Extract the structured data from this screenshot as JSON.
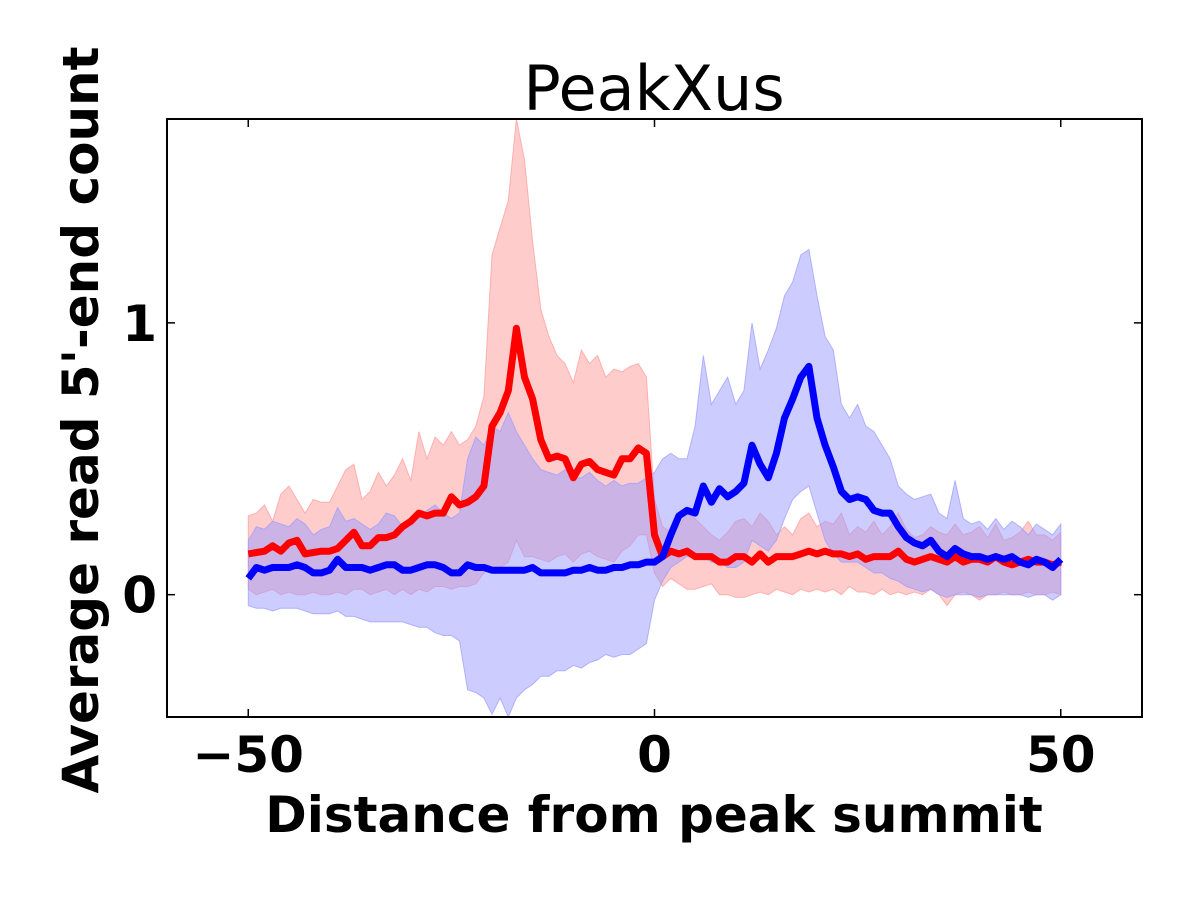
{
  "chart_data": {
    "type": "line",
    "title": "PeakXus",
    "xlabel": "Distance from peak summit",
    "ylabel": "Average read 5'-end count",
    "xlim": [
      -60,
      60
    ],
    "ylim": [
      -0.45,
      1.75
    ],
    "xticks": [
      -50,
      0,
      50
    ],
    "xtick_labels": [
      "−50",
      "0",
      "50"
    ],
    "yticks": [
      0,
      1
    ],
    "ytick_labels": [
      "0",
      "1"
    ],
    "grid": false,
    "legend": "none",
    "x": [
      -50,
      -49,
      -48,
      -47,
      -46,
      -45,
      -44,
      -43,
      -42,
      -41,
      -40,
      -39,
      -38,
      -37,
      -36,
      -35,
      -34,
      -33,
      -32,
      -31,
      -30,
      -29,
      -28,
      -27,
      -26,
      -25,
      -24,
      -23,
      -22,
      -21,
      -20,
      -19,
      -18,
      -17,
      -16,
      -15,
      -14,
      -13,
      -12,
      -11,
      -10,
      -9,
      -8,
      -7,
      -6,
      -5,
      -4,
      -3,
      -2,
      -1,
      0,
      1,
      2,
      3,
      4,
      5,
      6,
      7,
      8,
      9,
      10,
      11,
      12,
      13,
      14,
      15,
      16,
      17,
      18,
      19,
      20,
      21,
      22,
      23,
      24,
      25,
      26,
      27,
      28,
      29,
      30,
      31,
      32,
      33,
      34,
      35,
      36,
      37,
      38,
      39,
      40,
      41,
      42,
      43,
      44,
      45,
      46,
      47,
      48,
      49,
      50
    ],
    "series": [
      {
        "color": "#ff0000",
        "band_color": "#ff9a9a",
        "values": [
          0.15,
          0.155,
          0.16,
          0.18,
          0.16,
          0.19,
          0.2,
          0.15,
          0.155,
          0.16,
          0.16,
          0.17,
          0.2,
          0.23,
          0.18,
          0.18,
          0.21,
          0.21,
          0.22,
          0.25,
          0.27,
          0.3,
          0.29,
          0.3,
          0.3,
          0.36,
          0.33,
          0.34,
          0.36,
          0.4,
          0.62,
          0.67,
          0.75,
          0.98,
          0.8,
          0.72,
          0.57,
          0.5,
          0.51,
          0.5,
          0.43,
          0.48,
          0.49,
          0.46,
          0.45,
          0.44,
          0.5,
          0.5,
          0.54,
          0.52,
          0.22,
          0.14,
          0.16,
          0.15,
          0.16,
          0.14,
          0.14,
          0.14,
          0.12,
          0.12,
          0.14,
          0.14,
          0.12,
          0.15,
          0.12,
          0.14,
          0.14,
          0.14,
          0.15,
          0.16,
          0.15,
          0.16,
          0.15,
          0.15,
          0.14,
          0.15,
          0.13,
          0.14,
          0.14,
          0.14,
          0.16,
          0.13,
          0.12,
          0.13,
          0.14,
          0.13,
          0.12,
          0.14,
          0.12,
          0.13,
          0.13,
          0.12,
          0.14,
          0.12,
          0.11,
          0.12,
          0.13,
          0.12,
          0.12,
          0.11,
          0.12
        ],
        "upper": [
          0.29,
          0.3,
          0.33,
          0.27,
          0.37,
          0.4,
          0.35,
          0.3,
          0.35,
          0.34,
          0.34,
          0.4,
          0.46,
          0.48,
          0.35,
          0.38,
          0.45,
          0.4,
          0.44,
          0.5,
          0.42,
          0.6,
          0.5,
          0.58,
          0.55,
          0.6,
          0.55,
          0.57,
          0.62,
          0.73,
          1.25,
          1.35,
          1.45,
          1.75,
          1.6,
          1.3,
          1.05,
          0.95,
          0.88,
          0.85,
          0.78,
          0.9,
          0.85,
          0.88,
          0.8,
          0.83,
          0.82,
          0.84,
          0.85,
          0.8,
          0.35,
          0.25,
          0.23,
          0.25,
          0.3,
          0.28,
          0.25,
          0.22,
          0.2,
          0.23,
          0.27,
          0.28,
          0.25,
          0.3,
          0.27,
          0.22,
          0.25,
          0.22,
          0.28,
          0.3,
          0.25,
          0.27,
          0.26,
          0.3,
          0.22,
          0.25,
          0.23,
          0.27,
          0.22,
          0.25,
          0.3,
          0.24,
          0.21,
          0.22,
          0.25,
          0.23,
          0.22,
          0.26,
          0.22,
          0.23,
          0.25,
          0.21,
          0.26,
          0.2,
          0.21,
          0.23,
          0.27,
          0.22,
          0.22,
          0.2,
          0.23
        ],
        "lower": [
          0.02,
          0.0,
          0.01,
          0.02,
          0.0,
          0.01,
          0.0,
          0.0,
          0.01,
          0.0,
          0.0,
          0.01,
          0.0,
          0.02,
          0.02,
          0.0,
          0.01,
          0.02,
          0.0,
          0.02,
          0.0,
          0.02,
          0.01,
          0.03,
          0.03,
          0.02,
          0.03,
          0.03,
          0.04,
          0.08,
          0.1,
          0.1,
          0.12,
          0.2,
          0.14,
          0.14,
          0.13,
          0.12,
          0.14,
          0.15,
          0.12,
          0.15,
          0.16,
          0.14,
          0.13,
          0.12,
          0.16,
          0.18,
          0.22,
          0.22,
          0.08,
          0.03,
          0.06,
          0.04,
          0.02,
          0.02,
          0.03,
          0.04,
          0.0,
          0.0,
          -0.01,
          -0.01,
          0.0,
          0.01,
          0.0,
          0.02,
          0.01,
          0.0,
          0.02,
          0.01,
          0.02,
          0.01,
          0.02,
          0.0,
          0.03,
          0.01,
          0.01,
          0.0,
          0.02,
          0.0,
          0.01,
          0.0,
          0.01,
          0.0,
          0.02,
          0.0,
          -0.04,
          0.0,
          0.01,
          0.0,
          -0.02,
          0.0,
          0.0,
          0.01,
          0.0,
          0.0,
          0.01,
          0.0,
          0.0,
          0.01,
          0.0
        ]
      },
      {
        "color": "#0000ff",
        "band_color": "#9a9aff",
        "values": [
          0.06,
          0.1,
          0.09,
          0.1,
          0.1,
          0.1,
          0.11,
          0.1,
          0.08,
          0.08,
          0.09,
          0.13,
          0.1,
          0.1,
          0.1,
          0.09,
          0.1,
          0.11,
          0.11,
          0.09,
          0.09,
          0.1,
          0.11,
          0.11,
          0.1,
          0.08,
          0.08,
          0.11,
          0.1,
          0.1,
          0.09,
          0.09,
          0.09,
          0.09,
          0.09,
          0.1,
          0.08,
          0.08,
          0.08,
          0.08,
          0.09,
          0.09,
          0.1,
          0.09,
          0.09,
          0.1,
          0.1,
          0.11,
          0.11,
          0.12,
          0.12,
          0.14,
          0.22,
          0.29,
          0.31,
          0.3,
          0.4,
          0.34,
          0.39,
          0.36,
          0.38,
          0.41,
          0.55,
          0.48,
          0.43,
          0.52,
          0.65,
          0.72,
          0.8,
          0.84,
          0.65,
          0.55,
          0.47,
          0.38,
          0.35,
          0.36,
          0.35,
          0.31,
          0.3,
          0.3,
          0.25,
          0.21,
          0.19,
          0.18,
          0.2,
          0.16,
          0.14,
          0.17,
          0.15,
          0.14,
          0.14,
          0.13,
          0.14,
          0.13,
          0.14,
          0.12,
          0.11,
          0.13,
          0.12,
          0.1,
          0.13
        ],
        "upper": [
          0.2,
          0.25,
          0.24,
          0.27,
          0.26,
          0.25,
          0.28,
          0.26,
          0.22,
          0.24,
          0.25,
          0.32,
          0.27,
          0.28,
          0.26,
          0.24,
          0.26,
          0.3,
          0.29,
          0.25,
          0.26,
          0.29,
          0.31,
          0.33,
          0.3,
          0.28,
          0.3,
          0.5,
          0.58,
          0.55,
          0.62,
          0.6,
          0.67,
          0.6,
          0.55,
          0.5,
          0.46,
          0.45,
          0.44,
          0.46,
          0.43,
          0.43,
          0.45,
          0.42,
          0.4,
          0.42,
          0.4,
          0.41,
          0.41,
          0.43,
          0.45,
          0.5,
          0.52,
          0.5,
          0.5,
          0.62,
          0.88,
          0.7,
          0.75,
          0.8,
          0.7,
          0.75,
          1.0,
          0.83,
          0.9,
          0.98,
          1.1,
          1.15,
          1.25,
          1.27,
          1.1,
          0.95,
          0.9,
          0.7,
          0.65,
          0.7,
          0.62,
          0.6,
          0.55,
          0.5,
          0.4,
          0.37,
          0.35,
          0.36,
          0.37,
          0.3,
          0.28,
          0.42,
          0.28,
          0.26,
          0.27,
          0.24,
          0.28,
          0.24,
          0.27,
          0.25,
          0.22,
          0.26,
          0.24,
          0.22,
          0.26
        ],
        "lower": [
          -0.04,
          -0.05,
          -0.05,
          -0.06,
          -0.05,
          -0.05,
          -0.05,
          -0.06,
          -0.07,
          -0.07,
          -0.07,
          -0.06,
          -0.08,
          -0.08,
          -0.09,
          -0.1,
          -0.1,
          -0.1,
          -0.1,
          -0.1,
          -0.11,
          -0.12,
          -0.12,
          -0.14,
          -0.15,
          -0.15,
          -0.17,
          -0.35,
          -0.36,
          -0.38,
          -0.44,
          -0.38,
          -0.45,
          -0.38,
          -0.35,
          -0.33,
          -0.3,
          -0.3,
          -0.28,
          -0.28,
          -0.26,
          -0.27,
          -0.25,
          -0.24,
          -0.22,
          -0.23,
          -0.22,
          -0.22,
          -0.2,
          -0.18,
          -0.02,
          0.05,
          0.1,
          0.12,
          0.14,
          0.14,
          0.14,
          0.12,
          0.12,
          0.1,
          0.1,
          0.12,
          0.2,
          0.18,
          0.16,
          0.2,
          0.28,
          0.35,
          0.38,
          0.4,
          0.3,
          0.2,
          0.15,
          0.12,
          0.12,
          0.12,
          0.1,
          0.08,
          0.08,
          0.06,
          0.05,
          0.03,
          0.02,
          0.01,
          0.02,
          0.0,
          -0.01,
          0.0,
          0.0,
          0.0,
          -0.01,
          0.0,
          0.0,
          0.0,
          0.0,
          0.0,
          -0.01,
          0.0,
          0.0,
          -0.02,
          0.0
        ]
      }
    ]
  }
}
